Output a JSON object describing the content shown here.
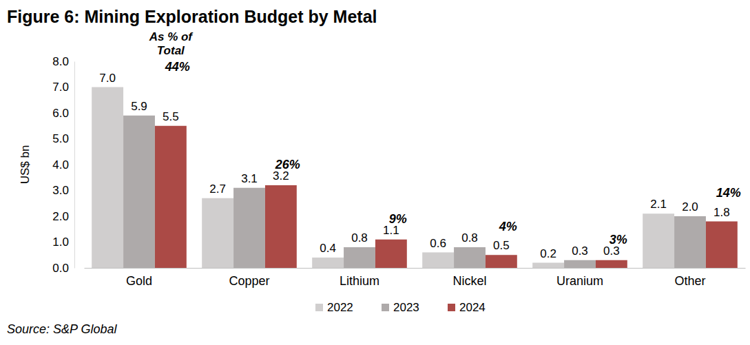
{
  "chart_data": {
    "type": "bar",
    "title": "Figure 6: Mining Exploration Budget by Metal",
    "ylabel": "US$ bn",
    "categories": [
      "Gold",
      "Copper",
      "Lithium",
      "Nickel",
      "Uranium",
      "Other"
    ],
    "series": [
      {
        "name": "2022",
        "color": "#d0cece",
        "values": [
          7.0,
          2.7,
          0.4,
          0.6,
          0.2,
          2.1
        ],
        "value_labels": [
          "7.0",
          "2.7",
          "0.4",
          "0.6",
          "0.2",
          "2.1"
        ]
      },
      {
        "name": "2023",
        "color": "#aeaaaa",
        "values": [
          5.9,
          3.1,
          0.8,
          0.8,
          0.3,
          2.0
        ],
        "value_labels": [
          "5.9",
          "3.1",
          "0.8",
          "0.8",
          "0.3",
          "2.0"
        ]
      },
      {
        "name": "2024",
        "color": "#ab4a46",
        "values": [
          5.5,
          3.2,
          1.1,
          0.5,
          0.3,
          1.8
        ],
        "value_labels": [
          "5.5",
          "3.2",
          "1.1",
          "0.5",
          "0.3",
          "1.8"
        ]
      }
    ],
    "annotation": [
      "As % of",
      "Total"
    ],
    "shares": {
      "values": [
        44,
        26,
        9,
        4,
        3,
        14
      ],
      "value_labels": [
        "44%",
        "26%",
        "9%",
        "4%",
        "3%",
        "14%"
      ]
    },
    "ylim": [
      0,
      8
    ],
    "yticks": [
      {
        "value": 0,
        "label": "0.0"
      },
      {
        "value": 1,
        "label": "1.0"
      },
      {
        "value": 2,
        "label": "2.0"
      },
      {
        "value": 3,
        "label": "3.0"
      },
      {
        "value": 4,
        "label": "4.0"
      },
      {
        "value": 5,
        "label": "5.0"
      },
      {
        "value": 6,
        "label": "6.0"
      },
      {
        "value": 7,
        "label": "7.0"
      },
      {
        "value": 8,
        "label": "8.0"
      }
    ],
    "grid": false,
    "data_labels": true,
    "legend": "bottom",
    "source": "Source: S&P Global"
  }
}
